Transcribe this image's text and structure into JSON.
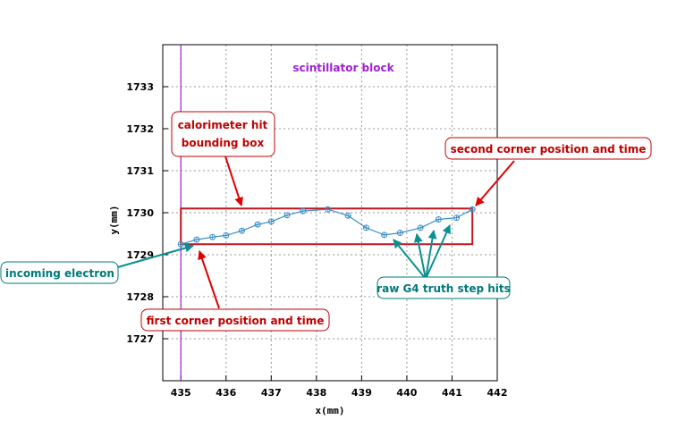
{
  "colors": {
    "grid": "#999999",
    "frame": "#000000",
    "track": "#3a8fc8",
    "marker": "#3a8fc8",
    "bounding_box": "#c0141e",
    "scintillator_line": "#a020d0",
    "red_callout": "#c00000",
    "red_arrow": "#e00000",
    "teal_callout": "#007a7a",
    "teal_arrow": "#0a9090"
  },
  "chart_data": {
    "type": "scatter",
    "title": "",
    "xlabel": "x(mm)",
    "ylabel": "y(mm)",
    "xlim": [
      434.6,
      442
    ],
    "ylim": [
      1726,
      1734
    ],
    "grid": true,
    "x_ticks": [
      435,
      436,
      437,
      438,
      439,
      440,
      441,
      442
    ],
    "y_ticks": [
      1727,
      1728,
      1729,
      1730,
      1731,
      1732,
      1733
    ],
    "x_tick_labels": [
      "435",
      "436",
      "437",
      "438",
      "439",
      "440",
      "441",
      "442"
    ],
    "y_tick_labels": [
      "1727",
      "1728",
      "1729",
      "1730",
      "1731",
      "1732",
      "1733"
    ],
    "scintillator_x": 435,
    "scintillator_label": "scintillator block",
    "bounding_box": {
      "x": [
        435,
        441.45
      ],
      "y": [
        1729.25,
        1730.1
      ]
    },
    "series": [
      {
        "values": [
          [
            435.0,
            1729.25
          ],
          [
            435.35,
            1729.36
          ],
          [
            435.7,
            1729.42
          ],
          [
            436.0,
            1729.46
          ],
          [
            436.35,
            1729.57
          ],
          [
            436.7,
            1729.72
          ],
          [
            437.0,
            1729.79
          ],
          [
            437.35,
            1729.94
          ],
          [
            437.7,
            1730.04
          ],
          [
            438.25,
            1730.08
          ],
          [
            438.7,
            1729.93
          ],
          [
            439.1,
            1729.64
          ],
          [
            439.5,
            1729.47
          ],
          [
            439.85,
            1729.52
          ],
          [
            440.3,
            1729.64
          ],
          [
            440.7,
            1729.84
          ],
          [
            441.1,
            1729.88
          ],
          [
            441.45,
            1730.08
          ]
        ]
      }
    ],
    "annotations": [
      {
        "text": "scintillator block",
        "color": "scintillator"
      },
      {
        "text": "calorimeter hit",
        "text2": "bounding box",
        "color": "red"
      },
      {
        "text": "second corner position and time",
        "color": "red"
      },
      {
        "text": "incoming electron",
        "color": "teal"
      },
      {
        "text": "first corner position and time",
        "color": "red"
      },
      {
        "text": "raw G4 truth step hits",
        "color": "teal"
      }
    ]
  }
}
